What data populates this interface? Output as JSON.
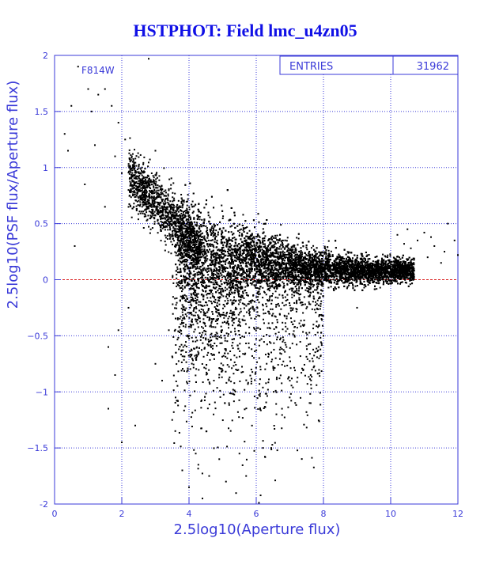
{
  "chart_data": {
    "type": "scatter",
    "title": "HSTPHOT: Field lmc_u4zn05",
    "xlabel": "2.5log10(Aperture flux)",
    "ylabel": "2.5log10(PSF flux/Aperture flux)",
    "filter_label": "F814W",
    "stats": {
      "label": "ENTRIES",
      "value": "31962"
    },
    "xlim": [
      0,
      12
    ],
    "ylim": [
      -2,
      2
    ],
    "x_ticks": [
      0,
      2,
      4,
      6,
      8,
      10,
      12
    ],
    "y_ticks": [
      -2,
      -1.5,
      -1,
      -0.5,
      0,
      0.5,
      1,
      1.5,
      2
    ],
    "x_tick_labels": [
      "0",
      "2",
      "4",
      "6",
      "8",
      "10",
      "12"
    ],
    "y_tick_labels": [
      "-2",
      "−1.5",
      "−1",
      "−0.5",
      "0",
      "0.5",
      "1",
      "1.5",
      "2"
    ],
    "grid": true,
    "reference_line": {
      "y": 0,
      "style": "dashed"
    },
    "series": [
      {
        "points": [
          [
            0.4,
            1.15
          ],
          [
            0.5,
            1.55
          ],
          [
            0.7,
            1.9
          ],
          [
            1.0,
            1.7
          ],
          [
            1.1,
            1.5
          ],
          [
            1.3,
            1.65
          ],
          [
            1.5,
            1.7
          ],
          [
            1.7,
            1.55
          ],
          [
            1.9,
            1.4
          ],
          [
            2.1,
            1.25
          ],
          [
            2.3,
            1.1
          ],
          [
            2.6,
            1.0
          ],
          [
            2.8,
            1.97
          ],
          [
            3.0,
            1.15
          ],
          [
            0.9,
            0.85
          ],
          [
            1.5,
            0.65
          ],
          [
            2.0,
            0.95
          ],
          [
            2.2,
            0.8
          ],
          [
            1.8,
            1.1
          ],
          [
            2.5,
            0.88
          ],
          [
            1.2,
            1.2
          ],
          [
            0.6,
            0.3
          ],
          [
            1.6,
            -0.6
          ],
          [
            1.8,
            -0.85
          ],
          [
            1.6,
            -1.15
          ],
          [
            2.0,
            -1.45
          ],
          [
            1.9,
            -0.45
          ],
          [
            2.4,
            -1.3
          ],
          [
            3.0,
            -0.75
          ],
          [
            3.2,
            -0.9
          ],
          [
            3.6,
            -1.05
          ],
          [
            3.5,
            -1.25
          ],
          [
            3.4,
            -0.45
          ],
          [
            3.8,
            -1.7
          ],
          [
            4.0,
            -1.85
          ],
          [
            4.2,
            -1.55
          ],
          [
            4.4,
            -1.95
          ],
          [
            4.6,
            -1.75
          ],
          [
            4.9,
            -1.6
          ],
          [
            5.1,
            -1.8
          ],
          [
            5.5,
            -1.55
          ],
          [
            5.7,
            -1.75
          ],
          [
            6.2,
            -1.5
          ],
          [
            6.6,
            -1.2
          ],
          [
            7.0,
            -0.9
          ],
          [
            7.4,
            -0.8
          ],
          [
            6.9,
            -0.6
          ],
          [
            8.0,
            -0.5
          ],
          [
            9.0,
            -0.25
          ],
          [
            0.3,
            1.3
          ],
          [
            2.2,
            -0.25
          ],
          [
            10.2,
            0.4
          ],
          [
            10.5,
            0.45
          ],
          [
            10.8,
            0.35
          ],
          [
            11.0,
            0.42
          ],
          [
            11.3,
            0.3
          ],
          [
            11.6,
            0.25
          ],
          [
            11.9,
            0.35
          ],
          [
            12.0,
            0.22
          ],
          [
            10.6,
            0.28
          ],
          [
            11.1,
            0.2
          ],
          [
            11.5,
            0.15
          ],
          [
            11.7,
            0.5
          ],
          [
            10.4,
            0.32
          ],
          [
            11.2,
            0.38
          ]
        ]
      }
    ]
  }
}
